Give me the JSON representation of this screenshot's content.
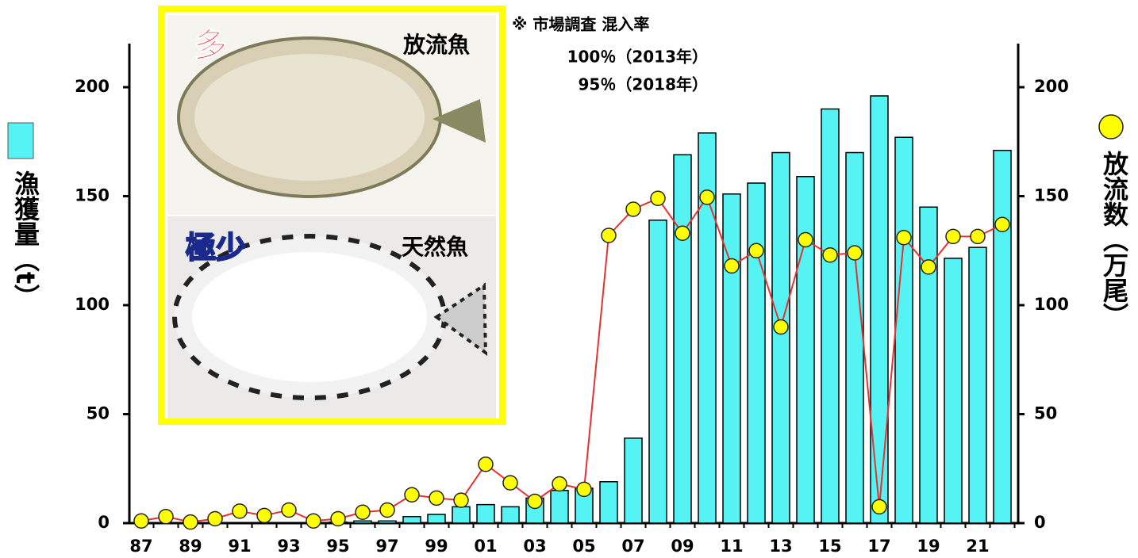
{
  "chart_data": {
    "type": "bar",
    "categories": [
      "87",
      null,
      "89",
      null,
      "91",
      null,
      "93",
      null,
      "95",
      null,
      "97",
      null,
      "99",
      null,
      "01",
      null,
      "03",
      null,
      "05",
      null,
      "07",
      null,
      "09",
      null,
      "11",
      null,
      "13",
      null,
      "15",
      null,
      "17",
      null,
      "19",
      null,
      "21",
      null
    ],
    "series": [
      {
        "name": "漁獲量（t）",
        "type": "bar",
        "color": "#55f3f3",
        "values": [
          0,
          0,
          0,
          0,
          0,
          0,
          0,
          0,
          0.5,
          1,
          1,
          3,
          4,
          7.5,
          8.5,
          7.5,
          11.5,
          15,
          16,
          19,
          39,
          139,
          169,
          179,
          151,
          156,
          170,
          159,
          190,
          170,
          196,
          177,
          145,
          121.5,
          126.5,
          171
        ]
      },
      {
        "name": "放流数（万尾）",
        "type": "line",
        "axis": "y2",
        "color": "#ffff00",
        "line_color": "#e8312f",
        "values": [
          1,
          3,
          0.5,
          2,
          5.5,
          3.5,
          6,
          1,
          2,
          5,
          6,
          13,
          11.5,
          10.5,
          27,
          18.5,
          10,
          18,
          15.5,
          132,
          144,
          149,
          133,
          149.5,
          118,
          125,
          90,
          130,
          123,
          124,
          7.5,
          131,
          117.5,
          131.5,
          131.5,
          137
        ]
      }
    ],
    "ylim": [
      0,
      220
    ],
    "yticks": [
      0,
      50,
      100,
      150,
      200
    ],
    "y2lim": [
      0,
      220
    ],
    "y2ticks": [
      0,
      50,
      100,
      150,
      200
    ],
    "annotations": [
      "※ 市場調査 混入率",
      "100％（2013年）",
      "95％（2018年）"
    ],
    "inset": {
      "top_label": "放流魚",
      "top_badge": "多",
      "bottom_label": "天然魚",
      "bottom_badge": "極少"
    }
  }
}
